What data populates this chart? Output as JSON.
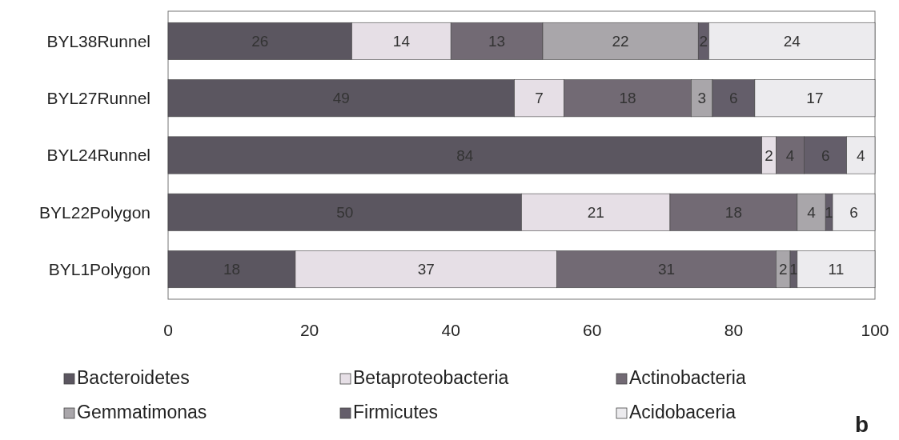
{
  "chart_data": {
    "type": "bar",
    "orientation": "horizontal",
    "stacked": true,
    "legend": "bottom",
    "grid": false,
    "categories": [
      "BYL38Runnel",
      "BYL27Runnel",
      "BYL24Runnel",
      "BYL22Polygon",
      "BYL1Polygon"
    ],
    "series": [
      {
        "name": "Bacteroidetes",
        "color": "#5b5660",
        "values": [
          26,
          49,
          84,
          50,
          18
        ],
        "value_labels": [
          "26",
          "49",
          "84",
          "50",
          "18"
        ]
      },
      {
        "name": "Betaproteobacteria",
        "color": "#e6dfe6",
        "values": [
          14,
          7,
          2,
          21,
          37
        ],
        "value_labels": [
          "14",
          "7",
          "2",
          "21",
          "37"
        ]
      },
      {
        "name": "Actinobacteria",
        "color": "#726a74",
        "values": [
          13,
          18,
          4,
          18,
          31
        ],
        "value_labels": [
          "13",
          "18",
          "4",
          "18",
          "31"
        ]
      },
      {
        "name": "Gemmatimonas",
        "color": "#a9a6aa",
        "values": [
          22,
          3,
          null,
          4,
          2
        ],
        "value_labels": [
          "22",
          "3",
          null,
          "4",
          "2"
        ]
      },
      {
        "name": "Firmicutes",
        "color": "#645e6a",
        "values": [
          1.5,
          6,
          6,
          1,
          1
        ],
        "value_labels": [
          "2",
          "6",
          "6",
          "1",
          "1"
        ]
      },
      {
        "name": "Acidobaceria",
        "color": "#ecebee",
        "values": [
          23.5,
          17,
          4,
          6,
          11
        ],
        "value_labels": [
          "24",
          "17",
          "4",
          "6",
          "11"
        ]
      }
    ],
    "xlim": [
      0,
      100
    ],
    "xticks": [
      0,
      20,
      40,
      60,
      80,
      100
    ],
    "annotations": [
      "b"
    ]
  }
}
